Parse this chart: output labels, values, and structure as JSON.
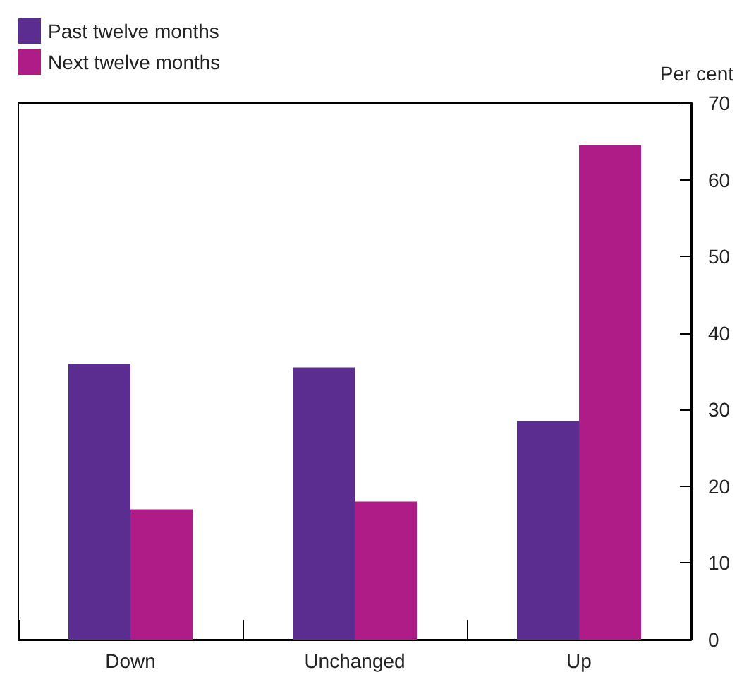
{
  "chart_data": {
    "type": "bar",
    "ylabel": "Per cent",
    "categories": [
      "Down",
      "Unchanged",
      "Up"
    ],
    "series": [
      {
        "name": "Past twelve months",
        "color": "#5b2d90",
        "values": [
          36,
          35.5,
          28.5
        ]
      },
      {
        "name": "Next twelve months",
        "color": "#b01c87",
        "values": [
          17,
          18,
          64.5
        ]
      }
    ],
    "ylim": [
      0,
      70
    ],
    "yticks": [
      0,
      10,
      20,
      30,
      40,
      50,
      60,
      70
    ],
    "grid": false,
    "legend": "top left"
  }
}
